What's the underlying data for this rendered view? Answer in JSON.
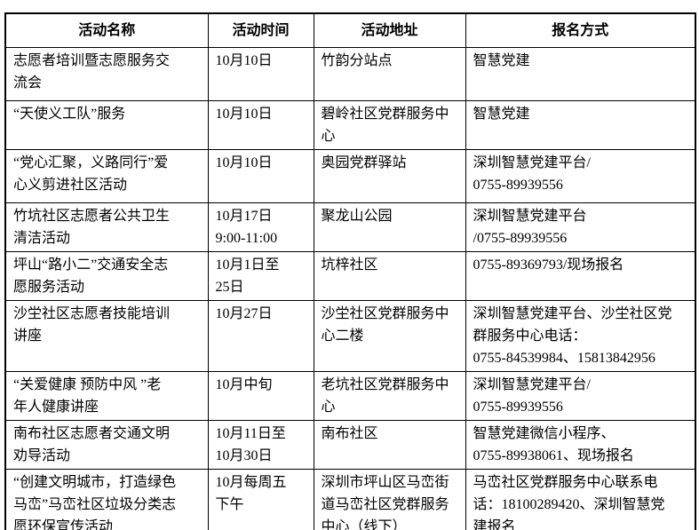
{
  "table": {
    "headers": [
      "活动名称",
      "活动时间",
      "活动地址",
      "报名方式"
    ],
    "rows": [
      {
        "name": "志愿者培训暨志愿服务交\n流会",
        "time": "10月10日",
        "address": "竹韵分站点",
        "registration": "智慧党建"
      },
      {
        "name": "“天使义工队”服务",
        "time": "10月10日",
        "address": "碧岭社区党群服务中\n心",
        "registration": "智慧党建"
      },
      {
        "name": "“党心汇聚，义路同行”爱\n心义剪进社区活动",
        "time": "10月10日",
        "address": "奥园党群驿站",
        "registration": "深圳智慧党建平台/\n0755-89939556"
      },
      {
        "name": "竹坑社区志愿者公共卫生\n清洁活动",
        "time": "10月17日\n9:00-11:00",
        "address": "聚龙山公园",
        "registration": "深圳智慧党建平台\n/0755-89939556"
      },
      {
        "name": "坪山“路小二”交通安全志\n愿服务活动",
        "time": "10月1日至\n25日",
        "address": "坑梓社区",
        "registration": "0755-89369793/现场报名"
      },
      {
        "name": "沙坣社区志愿者技能培训\n讲座",
        "time": "10月27日",
        "address": "沙坣社区党群服务中\n心二楼",
        "registration": "深圳智慧党建平台、沙坣社区党\n群服务中心电话：\n0755-84539984、15813842956"
      },
      {
        "name": "“关爱健康 预防中风 ”老\n年人健康讲座",
        "time": "10月中旬",
        "address": "老坑社区党群服务中\n心",
        "registration": "深圳智慧党建平台/\n0755-89939556"
      },
      {
        "name": "南布社区志愿者交通文明\n劝导活动",
        "time": "10月11日至\n10月30日",
        "address": "南布社区",
        "registration": "智慧党建微信小程序、\n0755-89938061、现场报名"
      },
      {
        "name": "“创建文明城市，打造绿色\n马峦”马峦社区垃圾分类志\n愿环保宣传活动",
        "time": "10月每周五\n下午",
        "address": "深圳市坪山区马峦街\n道马峦社区党群服务\n中心（线下）",
        "registration": "马峦社区党群服务中心联系电\n话：18100289420、深圳智慧党\n建报名"
      }
    ]
  }
}
